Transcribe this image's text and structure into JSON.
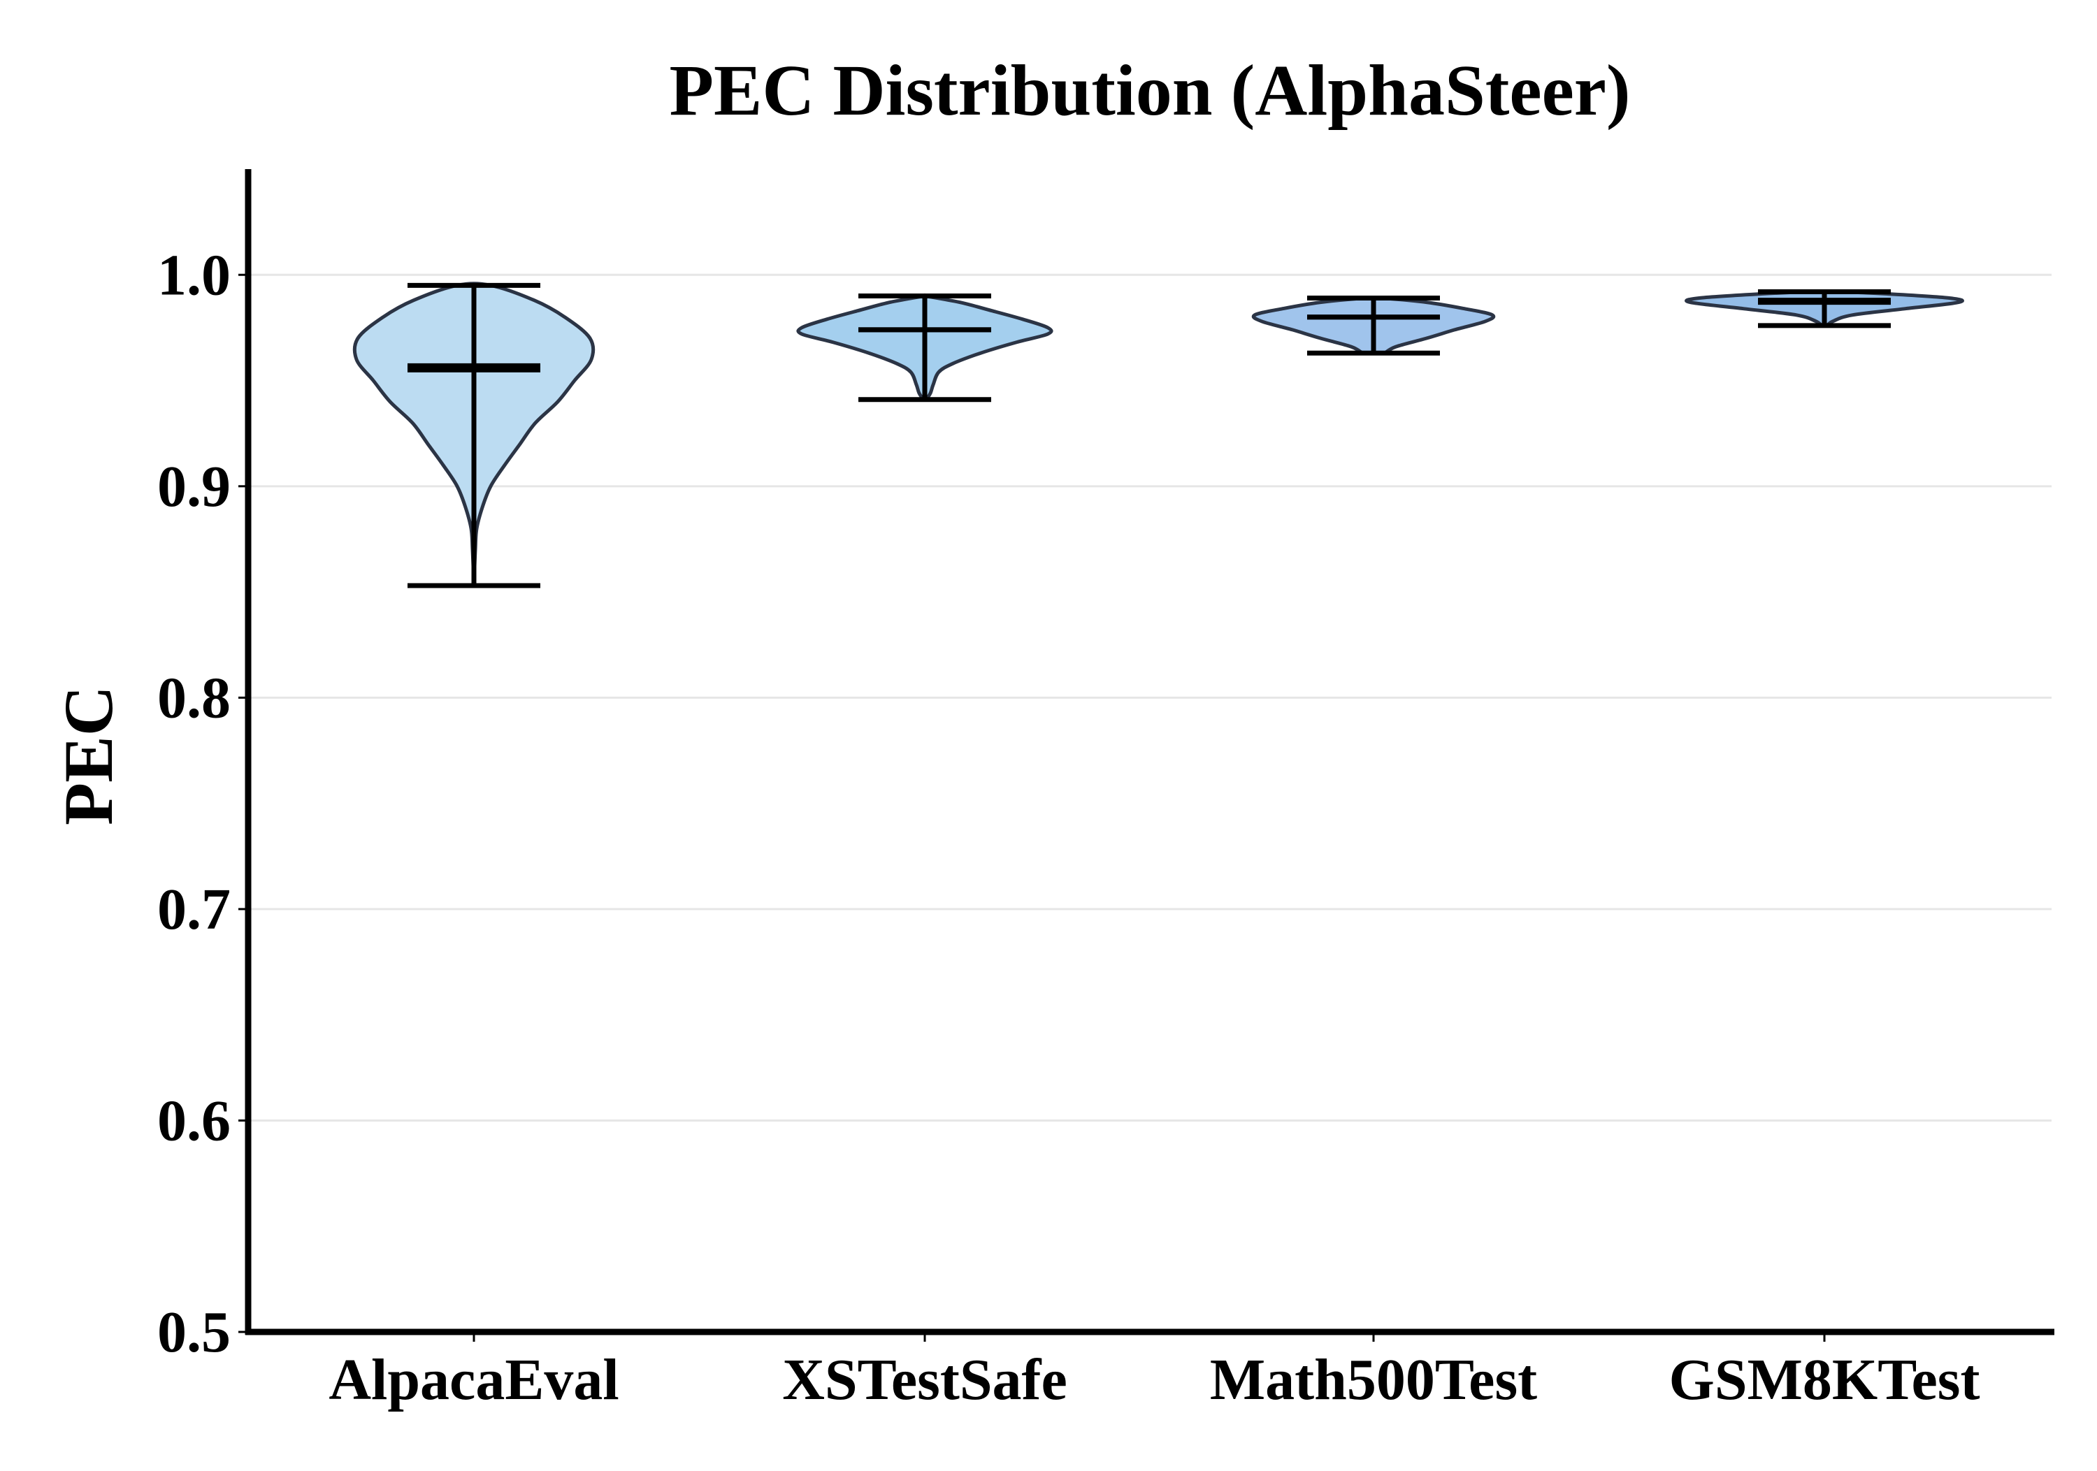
{
  "chart_data": {
    "type": "violin",
    "title": "PEC Distribution (AlphaSteer)",
    "xlabel": "",
    "ylabel": "PEC",
    "ylim": [
      0.5,
      1.05
    ],
    "yticks": [
      0.5,
      0.6,
      0.7,
      0.8,
      0.9,
      1.0
    ],
    "ytick_labels": [
      "0.5",
      "0.6",
      "0.7",
      "0.8",
      "0.9",
      "1.0"
    ],
    "grid": "horizontal",
    "categories": [
      "AlpacaEval",
      "XSTestSafe",
      "Math500Test",
      "GSM8KTest"
    ],
    "series": [
      {
        "category": "AlpacaEval",
        "color": "#bcdcf2",
        "min": 0.853,
        "max": 0.995,
        "mean": 0.955,
        "median": 0.957,
        "density": [
          [
            0.853,
            0.0
          ],
          [
            0.87,
            0.01
          ],
          [
            0.88,
            0.02
          ],
          [
            0.89,
            0.06
          ],
          [
            0.9,
            0.12
          ],
          [
            0.91,
            0.22
          ],
          [
            0.92,
            0.33
          ],
          [
            0.93,
            0.44
          ],
          [
            0.94,
            0.6
          ],
          [
            0.95,
            0.72
          ],
          [
            0.96,
            0.84
          ],
          [
            0.97,
            0.83
          ],
          [
            0.98,
            0.65
          ],
          [
            0.988,
            0.43
          ],
          [
            0.995,
            0.12
          ]
        ]
      },
      {
        "category": "XSTestSafe",
        "color": "#a4cfee",
        "min": 0.941,
        "max": 0.99,
        "mean": 0.974,
        "median": 0.974,
        "density": [
          [
            0.941,
            0.01
          ],
          [
            0.944,
            0.04
          ],
          [
            0.948,
            0.06
          ],
          [
            0.954,
            0.1
          ],
          [
            0.958,
            0.2
          ],
          [
            0.963,
            0.4
          ],
          [
            0.968,
            0.65
          ],
          [
            0.972,
            0.88
          ],
          [
            0.975,
            0.88
          ],
          [
            0.979,
            0.7
          ],
          [
            0.983,
            0.48
          ],
          [
            0.987,
            0.25
          ],
          [
            0.99,
            0.0
          ]
        ]
      },
      {
        "category": "Math500Test",
        "color": "#a0c4ec",
        "min": 0.963,
        "max": 0.989,
        "mean": 0.98,
        "median": 0.98,
        "density": [
          [
            0.963,
            0.08
          ],
          [
            0.966,
            0.16
          ],
          [
            0.97,
            0.38
          ],
          [
            0.974,
            0.58
          ],
          [
            0.978,
            0.8
          ],
          [
            0.981,
            0.85
          ],
          [
            0.984,
            0.65
          ],
          [
            0.987,
            0.38
          ],
          [
            0.989,
            0.06
          ]
        ]
      },
      {
        "category": "GSM8KTest",
        "color": "#94bde8",
        "min": 0.976,
        "max": 0.992,
        "mean": 0.987,
        "median": 0.988,
        "density": [
          [
            0.976,
            0.02
          ],
          [
            0.978,
            0.06
          ],
          [
            0.981,
            0.2
          ],
          [
            0.984,
            0.58
          ],
          [
            0.987,
            0.96
          ],
          [
            0.989,
            0.9
          ],
          [
            0.991,
            0.45
          ],
          [
            0.992,
            0.1
          ]
        ]
      }
    ]
  }
}
